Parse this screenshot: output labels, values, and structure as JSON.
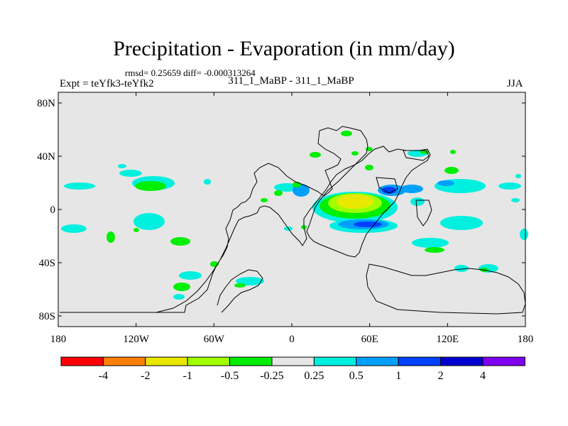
{
  "title": "Precipitation - Evaporation (in mm/day)",
  "stats": "rmsd= 0.25659 diff= -0.000313264",
  "experiment": "Expt = teYfk3-teYfk2",
  "period": "311_1_MaBP - 311_1_MaBP",
  "season": "JJA",
  "y_axis": {
    "ticks": [
      {
        "lat": 80,
        "label": "80N"
      },
      {
        "lat": 40,
        "label": "40N"
      },
      {
        "lat": 0,
        "label": "0"
      },
      {
        "lat": -40,
        "label": "40S"
      },
      {
        "lat": -80,
        "label": "80S"
      }
    ]
  },
  "x_axis": {
    "ticks": [
      {
        "lon": -180,
        "label": "180"
      },
      {
        "lon": -120,
        "label": "120W"
      },
      {
        "lon": -60,
        "label": "60W"
      },
      {
        "lon": 0,
        "label": "0"
      },
      {
        "lon": 60,
        "label": "60E"
      },
      {
        "lon": 120,
        "label": "120E"
      },
      {
        "lon": 180,
        "label": "180"
      }
    ]
  },
  "colorbar": {
    "colors": [
      "#ff0000",
      "#ff8000",
      "#e8e800",
      "#a0ff00",
      "#00ee00",
      "#e6e6e6",
      "#00f0e0",
      "#00a0ff",
      "#0040ff",
      "#0000d0",
      "#8000f0"
    ],
    "labels": [
      "-4",
      "-2",
      "-1",
      "-0.5",
      "-0.25",
      "0.25",
      "0.5",
      "1",
      "2",
      "4"
    ]
  },
  "fill_colors": {
    "background": "#e6e6e6",
    "cyan": "#00f0e0",
    "green": "#00ee00",
    "lightgreen": "#a0ff00",
    "yellow": "#e8e800",
    "lightblue": "#00a0ff",
    "blue": "#0040ff"
  }
}
